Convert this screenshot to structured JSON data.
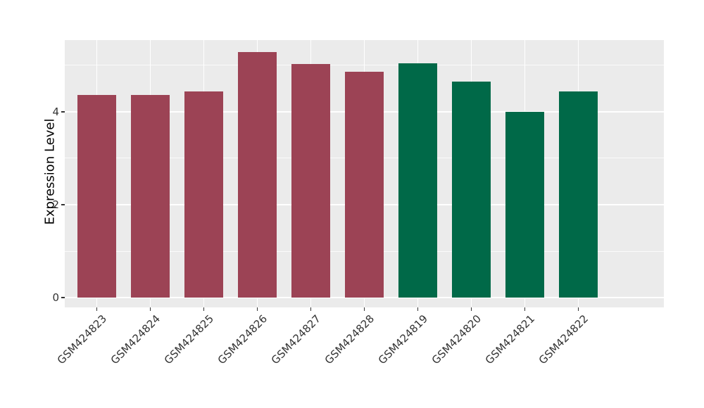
{
  "chart_data": {
    "type": "bar",
    "title": "",
    "xlabel": "",
    "ylabel": "Expression Level",
    "categories": [
      "GSM424823",
      "GSM424824",
      "GSM424825",
      "GSM424826",
      "GSM424827",
      "GSM424828",
      "GSM424819",
      "GSM424820",
      "GSM424821",
      "GSM424822"
    ],
    "values": [
      4.36,
      4.36,
      4.44,
      5.28,
      5.02,
      4.86,
      5.04,
      4.64,
      4.0,
      4.43
    ],
    "bar_colors": [
      "#9C4355",
      "#9C4355",
      "#9C4355",
      "#9C4355",
      "#9C4355",
      "#9C4355",
      "#006948",
      "#006948",
      "#006948",
      "#006948"
    ],
    "group_colors": {
      "group_1": "#9C4355",
      "group_2": "#006948"
    },
    "yticks": [
      0,
      2,
      4
    ],
    "yticks_minor": [
      1,
      3,
      5
    ],
    "ylim": [
      -0.21,
      5.54
    ],
    "grid": "on",
    "legend": "none",
    "panel_background": "#EBEBEB",
    "grid_color": "#FFFFFF",
    "tick_color": "#333333",
    "tick_label_color": "#333333",
    "axis_title_color": "#000000"
  }
}
